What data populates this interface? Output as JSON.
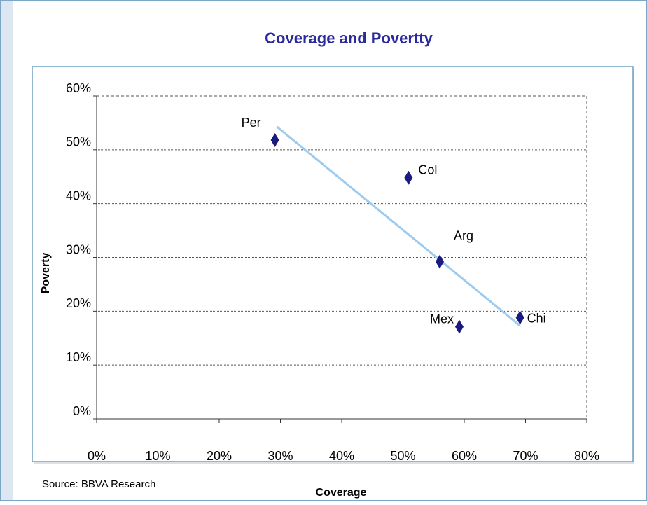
{
  "chart_data": {
    "type": "scatter",
    "title": "Coverage and Povertty",
    "x_label": "Coverage",
    "y_label": "Poverty",
    "source": "Source: BBVA Research",
    "series": [
      {
        "color": "#1a1a80",
        "labels": [
          "Per",
          "Col",
          "Arg",
          "Mex",
          "Chi"
        ],
        "x": [
          29.1,
          50.9,
          56,
          59.2,
          69.1
        ],
        "values": [
          51.8,
          44.8,
          29.2,
          17.1,
          18.8
        ]
      }
    ],
    "trendline": {
      "color": "#9ccbef",
      "x": [
        29.4,
        69.1
      ],
      "values": [
        54.3,
        17.3
      ]
    },
    "xlim": [
      0,
      80
    ],
    "ylim": [
      0,
      60
    ],
    "xticks": [
      {
        "value": 0,
        "label": "0%"
      },
      {
        "value": 10,
        "label": "10%"
      },
      {
        "value": 20,
        "label": "20%"
      },
      {
        "value": 30,
        "label": "30%"
      },
      {
        "value": 40,
        "label": "40%"
      },
      {
        "value": 50,
        "label": "50%"
      },
      {
        "value": 60,
        "label": "60%"
      },
      {
        "value": 70,
        "label": "70%"
      },
      {
        "value": 80,
        "label": "80%"
      }
    ],
    "yticks": [
      {
        "value": 0,
        "label": "0%"
      },
      {
        "value": 10,
        "label": "10%"
      },
      {
        "value": 20,
        "label": "20%"
      },
      {
        "value": 30,
        "label": "30%"
      },
      {
        "value": 40,
        "label": "40%"
      },
      {
        "value": 50,
        "label": "50%"
      },
      {
        "value": 60,
        "label": "60%"
      }
    ],
    "grid": true
  }
}
